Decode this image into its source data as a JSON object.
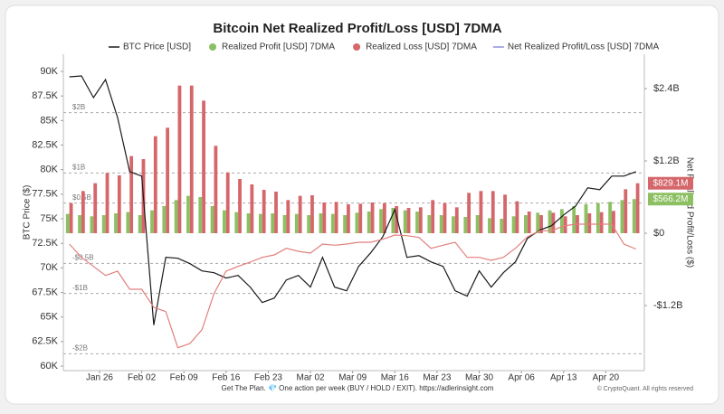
{
  "chart_data": {
    "type": "combo",
    "title": "Bitcoin Net Realized Profit/Loss [USD] 7DMA",
    "ylabel": "BTC Price ($)",
    "y2label": "Net Realized Profit/Loss ($)",
    "footer": "Get The Plan. 💎 One action per week (BUY / HOLD / EXIT). https://adlerinsight.com",
    "credit": "© CryptoQuant. All rights reserved",
    "x": [
      21,
      23,
      25,
      27,
      29,
      31,
      33,
      35,
      37,
      39,
      41,
      43,
      45,
      47,
      49,
      51,
      53,
      55,
      57,
      59,
      61,
      63,
      65,
      67,
      69,
      71,
      73,
      75,
      77,
      79,
      81,
      83,
      85,
      87,
      89,
      91,
      93,
      95,
      97,
      99,
      101,
      103,
      105,
      107,
      109,
      111,
      113,
      115
    ],
    "xlim": [
      20,
      116.4
    ],
    "xticks": [
      {
        "value": 26,
        "label": "Jan 26"
      },
      {
        "value": 33,
        "label": "Feb 02"
      },
      {
        "value": 40,
        "label": "Feb 09"
      },
      {
        "value": 47,
        "label": "Feb 16"
      },
      {
        "value": 54,
        "label": "Feb 23"
      },
      {
        "value": 61,
        "label": "Mar 02"
      },
      {
        "value": 68,
        "label": "Mar 09"
      },
      {
        "value": 75,
        "label": "Mar 16"
      },
      {
        "value": 82,
        "label": "Mar 23"
      },
      {
        "value": 89,
        "label": "Mar 30"
      },
      {
        "value": 96,
        "label": "Apr 06"
      },
      {
        "value": 103,
        "label": "Apr 13"
      },
      {
        "value": 110,
        "label": "Apr 20"
      }
    ],
    "ylim": [
      59540,
      91750
    ],
    "yticks": [
      {
        "value": 60000,
        "label": "60K"
      },
      {
        "value": 62500,
        "label": "62.5K"
      },
      {
        "value": 65000,
        "label": "65K"
      },
      {
        "value": 67500,
        "label": "67.5K"
      },
      {
        "value": 70000,
        "label": "70K"
      },
      {
        "value": 72500,
        "label": "72.5K"
      },
      {
        "value": 75000,
        "label": "75K"
      },
      {
        "value": 77500,
        "label": "77.5K"
      },
      {
        "value": 80000,
        "label": "80K"
      },
      {
        "value": 82500,
        "label": "82.5K"
      },
      {
        "value": 85000,
        "label": "85K"
      },
      {
        "value": 87500,
        "label": "87.5K"
      },
      {
        "value": 90000,
        "label": "90K"
      }
    ],
    "y2lim": [
      -2.28,
      2.97
    ],
    "y2ticks": [
      {
        "value": -1.2,
        "label": "-$1.2B"
      },
      {
        "value": 0,
        "label": "$0"
      },
      {
        "value": 1.2,
        "label": "$1.2B"
      },
      {
        "value": 2.4,
        "label": "$2.4B"
      }
    ],
    "ref_lines": [
      {
        "value": 2,
        "label": "$2B"
      },
      {
        "value": 1,
        "label": "$1B"
      },
      {
        "value": 0.5,
        "label": "$0.5B"
      },
      {
        "value": -0.5,
        "label": "-$0.5B"
      },
      {
        "value": -1,
        "label": "-$1B"
      },
      {
        "value": -2,
        "label": "-$2B"
      }
    ],
    "series": [
      {
        "name": "BTC Price [USD]",
        "kind": "line",
        "axis": "y",
        "color": "#1a1a1a",
        "values": [
          89450,
          89540,
          87330,
          89170,
          85310,
          79800,
          79340,
          64180,
          71070,
          70980,
          70430,
          69690,
          69510,
          68960,
          69230,
          68040,
          66470,
          66930,
          68770,
          69230,
          68040,
          71070,
          68040,
          67670,
          70150,
          71530,
          73180,
          75940,
          71070,
          71250,
          70610,
          70150,
          67670,
          67120,
          69690,
          68040,
          69510,
          70610,
          73000,
          73830,
          74290,
          75390,
          76310,
          78150,
          77960,
          79340,
          79340,
          79800
        ]
      },
      {
        "name": "Realized Profit [USD] 7DMA",
        "kind": "bar",
        "axis": "y2",
        "color": "#8cc063",
        "values": [
          0.32,
          0.3,
          0.28,
          0.3,
          0.33,
          0.35,
          0.3,
          0.38,
          0.45,
          0.55,
          0.62,
          0.6,
          0.45,
          0.38,
          0.35,
          0.33,
          0.32,
          0.33,
          0.3,
          0.32,
          0.3,
          0.33,
          0.32,
          0.3,
          0.34,
          0.36,
          0.4,
          0.42,
          0.38,
          0.36,
          0.3,
          0.3,
          0.28,
          0.27,
          0.3,
          0.25,
          0.24,
          0.28,
          0.3,
          0.34,
          0.38,
          0.4,
          0.45,
          0.48,
          0.5,
          0.52,
          0.55,
          0.5662
        ],
        "value_labels": [
          null,
          null,
          null,
          null,
          null,
          null,
          null,
          null,
          null,
          null,
          null,
          null,
          null,
          null,
          null,
          null,
          null,
          null,
          null,
          null,
          null,
          null,
          null,
          null,
          null,
          null,
          null,
          null,
          null,
          null,
          null,
          null,
          null,
          null,
          null,
          null,
          null,
          null,
          null,
          null,
          null,
          null,
          null,
          null,
          null,
          null,
          null,
          "$566.2M"
        ]
      },
      {
        "name": "Realized Loss [USD] 7DMA",
        "kind": "bar",
        "axis": "y2",
        "color": "#d5676b",
        "values": [
          0.5,
          0.7,
          0.83,
          1.0,
          0.96,
          1.28,
          1.23,
          1.61,
          1.75,
          2.45,
          2.45,
          2.2,
          1.45,
          1.01,
          0.9,
          0.81,
          0.72,
          0.69,
          0.55,
          0.62,
          0.63,
          0.51,
          0.52,
          0.48,
          0.49,
          0.51,
          0.5,
          0.45,
          0.42,
          0.43,
          0.55,
          0.5,
          0.43,
          0.67,
          0.7,
          0.7,
          0.64,
          0.53,
          0.36,
          0.3,
          0.34,
          0.28,
          0.3,
          0.33,
          0.35,
          0.37,
          0.73,
          0.8291
        ],
        "value_labels": [
          null,
          null,
          null,
          null,
          null,
          null,
          null,
          null,
          null,
          null,
          null,
          null,
          null,
          null,
          null,
          null,
          null,
          null,
          null,
          null,
          null,
          null,
          null,
          null,
          null,
          null,
          null,
          null,
          null,
          null,
          null,
          null,
          null,
          null,
          null,
          null,
          null,
          null,
          null,
          null,
          null,
          null,
          null,
          null,
          null,
          null,
          null,
          "$829.1M"
        ]
      },
      {
        "name": "Net Realized Profit/Loss [USD] 7DMA",
        "kind": "line",
        "axis": "y2",
        "color": "#8d8fe0",
        "negative_color": "#e27f7c",
        "values": [
          -0.18,
          -0.4,
          -0.55,
          -0.7,
          -0.63,
          -0.93,
          -0.93,
          -1.23,
          -1.3,
          -1.9,
          -1.83,
          -1.6,
          -1.0,
          -0.63,
          -0.55,
          -0.48,
          -0.4,
          -0.36,
          -0.25,
          -0.3,
          -0.33,
          -0.18,
          -0.2,
          -0.18,
          -0.15,
          -0.15,
          -0.1,
          -0.03,
          -0.04,
          -0.07,
          -0.25,
          -0.2,
          -0.15,
          -0.4,
          -0.4,
          -0.45,
          -0.4,
          -0.25,
          -0.06,
          0.04,
          0.04,
          0.12,
          0.15,
          0.15,
          0.15,
          0.15,
          -0.18,
          -0.263
        ]
      }
    ]
  }
}
